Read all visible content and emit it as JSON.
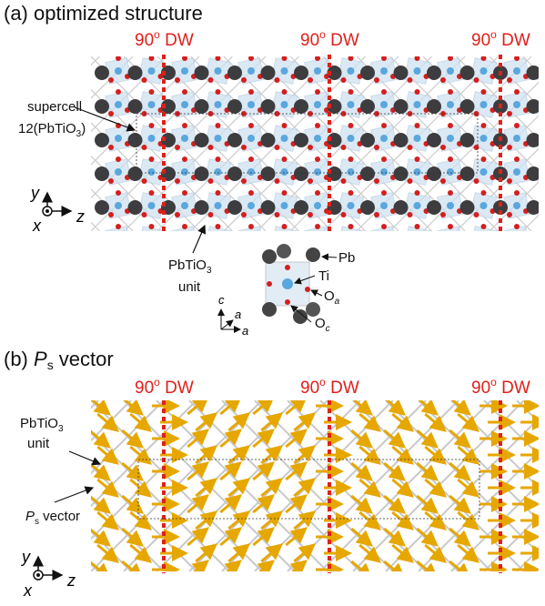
{
  "panel_a": {
    "title": "(a) optimized structure",
    "dw_labels": [
      {
        "number": "90",
        "superscript": "o",
        "text": " DW"
      },
      {
        "number": "90",
        "superscript": "o",
        "text": " DW"
      },
      {
        "number": "90",
        "superscript": "o",
        "text": " DW"
      }
    ],
    "supercell_label": {
      "line1": "supercell",
      "line2_main": "12(PbTiO",
      "line2_sub": "3",
      "line2_end": ")"
    },
    "axes": {
      "y": "y",
      "x": "x",
      "z": "z"
    },
    "unit_label": {
      "line1_main": "PbTiO",
      "line1_sub": "3",
      "line2": "unit"
    },
    "unit_cell": {
      "pb": "Pb",
      "ti": "Ti",
      "oa_main": "O",
      "oa_sub": "a",
      "oc_main": "O",
      "oc_sub": "c",
      "axis_c": "c",
      "axis_a1": "a",
      "axis_a2": "a"
    }
  },
  "panel_b": {
    "title_prefix": "(b) ",
    "title_p": "P",
    "title_sub": "s",
    "title_rest": " vector",
    "dw_labels": [
      {
        "number": "90",
        "superscript": "o",
        "text": " DW"
      },
      {
        "number": "90",
        "superscript": "o",
        "text": " DW"
      },
      {
        "number": "90",
        "superscript": "o",
        "text": " DW"
      }
    ],
    "unit_label": {
      "line1_main": "PbTiO",
      "line1_sub": "3",
      "line2": "unit"
    },
    "vector_label": {
      "p": "P",
      "sub": "s",
      "rest": " vector"
    },
    "axes": {
      "y": "y",
      "x": "x",
      "z": "z"
    }
  }
}
